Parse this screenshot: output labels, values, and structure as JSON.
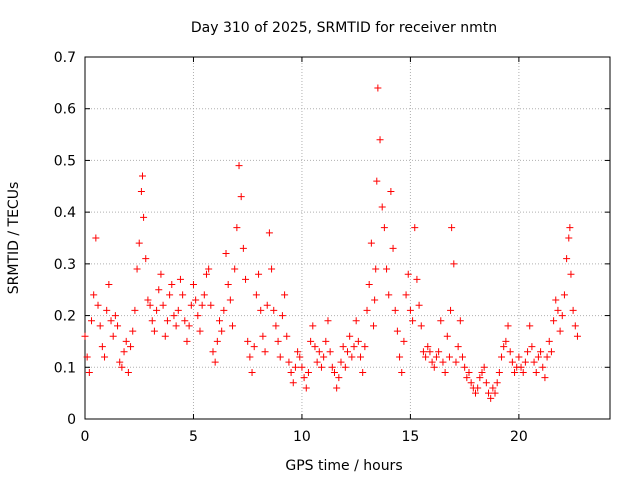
{
  "chart_data": {
    "type": "scatter",
    "title": "Day 310 of 2025, SRMTID for receiver nmtn",
    "xlabel": "GPS time / hours",
    "ylabel": "SRMTID / TECUs",
    "xlim": [
      0,
      24.2
    ],
    "ylim": [
      0,
      0.7
    ],
    "xticks": [
      0,
      5,
      10,
      15,
      20
    ],
    "xtick_labels": [
      "0",
      "5",
      "10",
      "15",
      "20"
    ],
    "yticks": [
      0,
      0.1,
      0.2,
      0.3,
      0.4,
      0.5,
      0.6,
      0.7
    ],
    "ytick_labels": [
      "0",
      "0.1",
      "0.2",
      "0.3",
      "0.4",
      "0.5",
      "0.6",
      "0.7"
    ],
    "grid": true,
    "marker": "+",
    "marker_color": "#ff0000",
    "series": [
      {
        "name": "SRMTID",
        "color": "#ff0000",
        "x": [
          0.0,
          0.1,
          0.2,
          0.3,
          0.4,
          0.5,
          0.6,
          0.7,
          0.8,
          0.9,
          1.0,
          1.1,
          1.2,
          1.3,
          1.4,
          1.5,
          1.6,
          1.7,
          1.8,
          1.9,
          2.0,
          2.1,
          2.2,
          2.3,
          2.4,
          2.5,
          2.6,
          2.65,
          2.7,
          2.8,
          2.9,
          3.0,
          3.1,
          3.2,
          3.3,
          3.4,
          3.5,
          3.6,
          3.7,
          3.8,
          3.9,
          4.0,
          4.1,
          4.2,
          4.3,
          4.4,
          4.5,
          4.6,
          4.7,
          4.8,
          4.9,
          5.0,
          5.1,
          5.2,
          5.3,
          5.4,
          5.5,
          5.6,
          5.7,
          5.8,
          5.9,
          6.0,
          6.1,
          6.2,
          6.3,
          6.4,
          6.5,
          6.6,
          6.7,
          6.8,
          6.9,
          7.0,
          7.1,
          7.2,
          7.3,
          7.4,
          7.5,
          7.6,
          7.7,
          7.8,
          7.9,
          8.0,
          8.1,
          8.2,
          8.3,
          8.4,
          8.5,
          8.6,
          8.7,
          8.8,
          8.9,
          9.0,
          9.1,
          9.2,
          9.3,
          9.4,
          9.5,
          9.6,
          9.7,
          9.8,
          9.9,
          10.0,
          10.1,
          10.2,
          10.3,
          10.4,
          10.5,
          10.6,
          10.7,
          10.8,
          10.9,
          11.0,
          11.1,
          11.2,
          11.3,
          11.4,
          11.5,
          11.6,
          11.7,
          11.8,
          11.9,
          12.0,
          12.1,
          12.2,
          12.3,
          12.4,
          12.5,
          12.6,
          12.7,
          12.8,
          12.9,
          13.0,
          13.1,
          13.2,
          13.3,
          13.35,
          13.4,
          13.45,
          13.5,
          13.6,
          13.7,
          13.8,
          13.9,
          14.0,
          14.1,
          14.2,
          14.3,
          14.4,
          14.5,
          14.6,
          14.7,
          14.8,
          14.9,
          15.0,
          15.1,
          15.2,
          15.3,
          15.4,
          15.5,
          15.6,
          15.7,
          15.8,
          15.9,
          16.0,
          16.1,
          16.2,
          16.3,
          16.4,
          16.5,
          16.6,
          16.7,
          16.8,
          16.85,
          16.9,
          17.0,
          17.1,
          17.2,
          17.3,
          17.4,
          17.5,
          17.6,
          17.7,
          17.8,
          17.9,
          18.0,
          18.1,
          18.2,
          18.3,
          18.4,
          18.5,
          18.6,
          18.7,
          18.8,
          18.9,
          19.0,
          19.1,
          19.2,
          19.3,
          19.4,
          19.5,
          19.6,
          19.7,
          19.8,
          19.9,
          20.0,
          20.1,
          20.2,
          20.3,
          20.4,
          20.5,
          20.6,
          20.7,
          20.8,
          20.9,
          21.0,
          21.1,
          21.2,
          21.3,
          21.4,
          21.5,
          21.6,
          21.7,
          21.8,
          21.9,
          22.0,
          22.1,
          22.2,
          22.3,
          22.35,
          22.4,
          22.5,
          22.6,
          22.7
        ],
        "y": [
          0.16,
          0.12,
          0.09,
          0.19,
          0.24,
          0.35,
          0.22,
          0.18,
          0.14,
          0.12,
          0.21,
          0.26,
          0.19,
          0.16,
          0.2,
          0.18,
          0.11,
          0.1,
          0.13,
          0.15,
          0.09,
          0.14,
          0.17,
          0.21,
          0.29,
          0.34,
          0.44,
          0.47,
          0.39,
          0.31,
          0.23,
          0.22,
          0.19,
          0.17,
          0.21,
          0.25,
          0.28,
          0.22,
          0.16,
          0.19,
          0.24,
          0.26,
          0.2,
          0.18,
          0.21,
          0.27,
          0.24,
          0.19,
          0.15,
          0.18,
          0.22,
          0.26,
          0.23,
          0.2,
          0.17,
          0.22,
          0.24,
          0.28,
          0.29,
          0.22,
          0.13,
          0.11,
          0.15,
          0.19,
          0.17,
          0.21,
          0.32,
          0.26,
          0.23,
          0.18,
          0.29,
          0.37,
          0.49,
          0.43,
          0.33,
          0.27,
          0.15,
          0.12,
          0.09,
          0.14,
          0.24,
          0.28,
          0.21,
          0.16,
          0.13,
          0.22,
          0.36,
          0.29,
          0.21,
          0.18,
          0.15,
          0.12,
          0.2,
          0.24,
          0.16,
          0.11,
          0.09,
          0.07,
          0.1,
          0.13,
          0.12,
          0.1,
          0.08,
          0.06,
          0.09,
          0.15,
          0.18,
          0.14,
          0.11,
          0.13,
          0.1,
          0.12,
          0.15,
          0.19,
          0.13,
          0.1,
          0.09,
          0.06,
          0.08,
          0.11,
          0.14,
          0.1,
          0.13,
          0.16,
          0.12,
          0.14,
          0.19,
          0.15,
          0.12,
          0.09,
          0.14,
          0.21,
          0.26,
          0.34,
          0.18,
          0.23,
          0.29,
          0.46,
          0.64,
          0.54,
          0.41,
          0.37,
          0.29,
          0.24,
          0.44,
          0.33,
          0.21,
          0.17,
          0.12,
          0.09,
          0.15,
          0.24,
          0.28,
          0.21,
          0.19,
          0.37,
          0.27,
          0.22,
          0.18,
          0.13,
          0.12,
          0.14,
          0.13,
          0.11,
          0.1,
          0.12,
          0.13,
          0.19,
          0.11,
          0.09,
          0.16,
          0.12,
          0.21,
          0.37,
          0.3,
          0.11,
          0.14,
          0.19,
          0.12,
          0.1,
          0.08,
          0.09,
          0.07,
          0.06,
          0.05,
          0.06,
          0.08,
          0.09,
          0.1,
          0.07,
          0.05,
          0.04,
          0.06,
          0.05,
          0.07,
          0.09,
          0.12,
          0.14,
          0.15,
          0.18,
          0.13,
          0.11,
          0.09,
          0.1,
          0.12,
          0.1,
          0.09,
          0.11,
          0.13,
          0.18,
          0.14,
          0.11,
          0.09,
          0.12,
          0.13,
          0.1,
          0.08,
          0.12,
          0.15,
          0.13,
          0.19,
          0.23,
          0.21,
          0.17,
          0.2,
          0.24,
          0.31,
          0.35,
          0.37,
          0.28,
          0.21,
          0.18,
          0.16
        ]
      }
    ]
  }
}
